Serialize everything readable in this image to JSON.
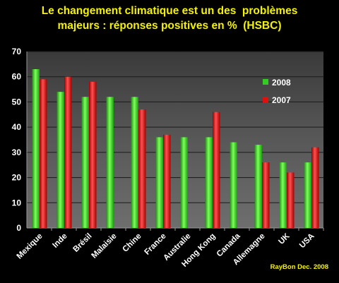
{
  "chart_data": {
    "type": "bar",
    "title": "Le changement climatique est un des  problèmes",
    "subtitle": "majeurs : réponses positives en %  (HSBC)",
    "xlabel": "",
    "ylabel": "",
    "ylim": [
      0,
      70
    ],
    "yticks": [
      0,
      10,
      20,
      30,
      40,
      50,
      60,
      70
    ],
    "grid": true,
    "legend_position": "right",
    "categories": [
      "Mexique",
      "Inde",
      "Brésil",
      "Malaisie",
      "Chine",
      "France",
      "Australie",
      "Hong Kong",
      "Canada",
      "Allemagne",
      "UK",
      "USA"
    ],
    "series": [
      {
        "name": "2008",
        "color": "#33cc22",
        "values": [
          63,
          54,
          52,
          52,
          52,
          36,
          36,
          36,
          34,
          33,
          26,
          26
        ]
      },
      {
        "name": "2007",
        "color": "#e01010",
        "values": [
          59,
          60,
          58,
          null,
          47,
          37,
          null,
          46,
          null,
          26,
          22,
          32
        ]
      }
    ],
    "annotation": "RayBon Dec. 2008"
  }
}
